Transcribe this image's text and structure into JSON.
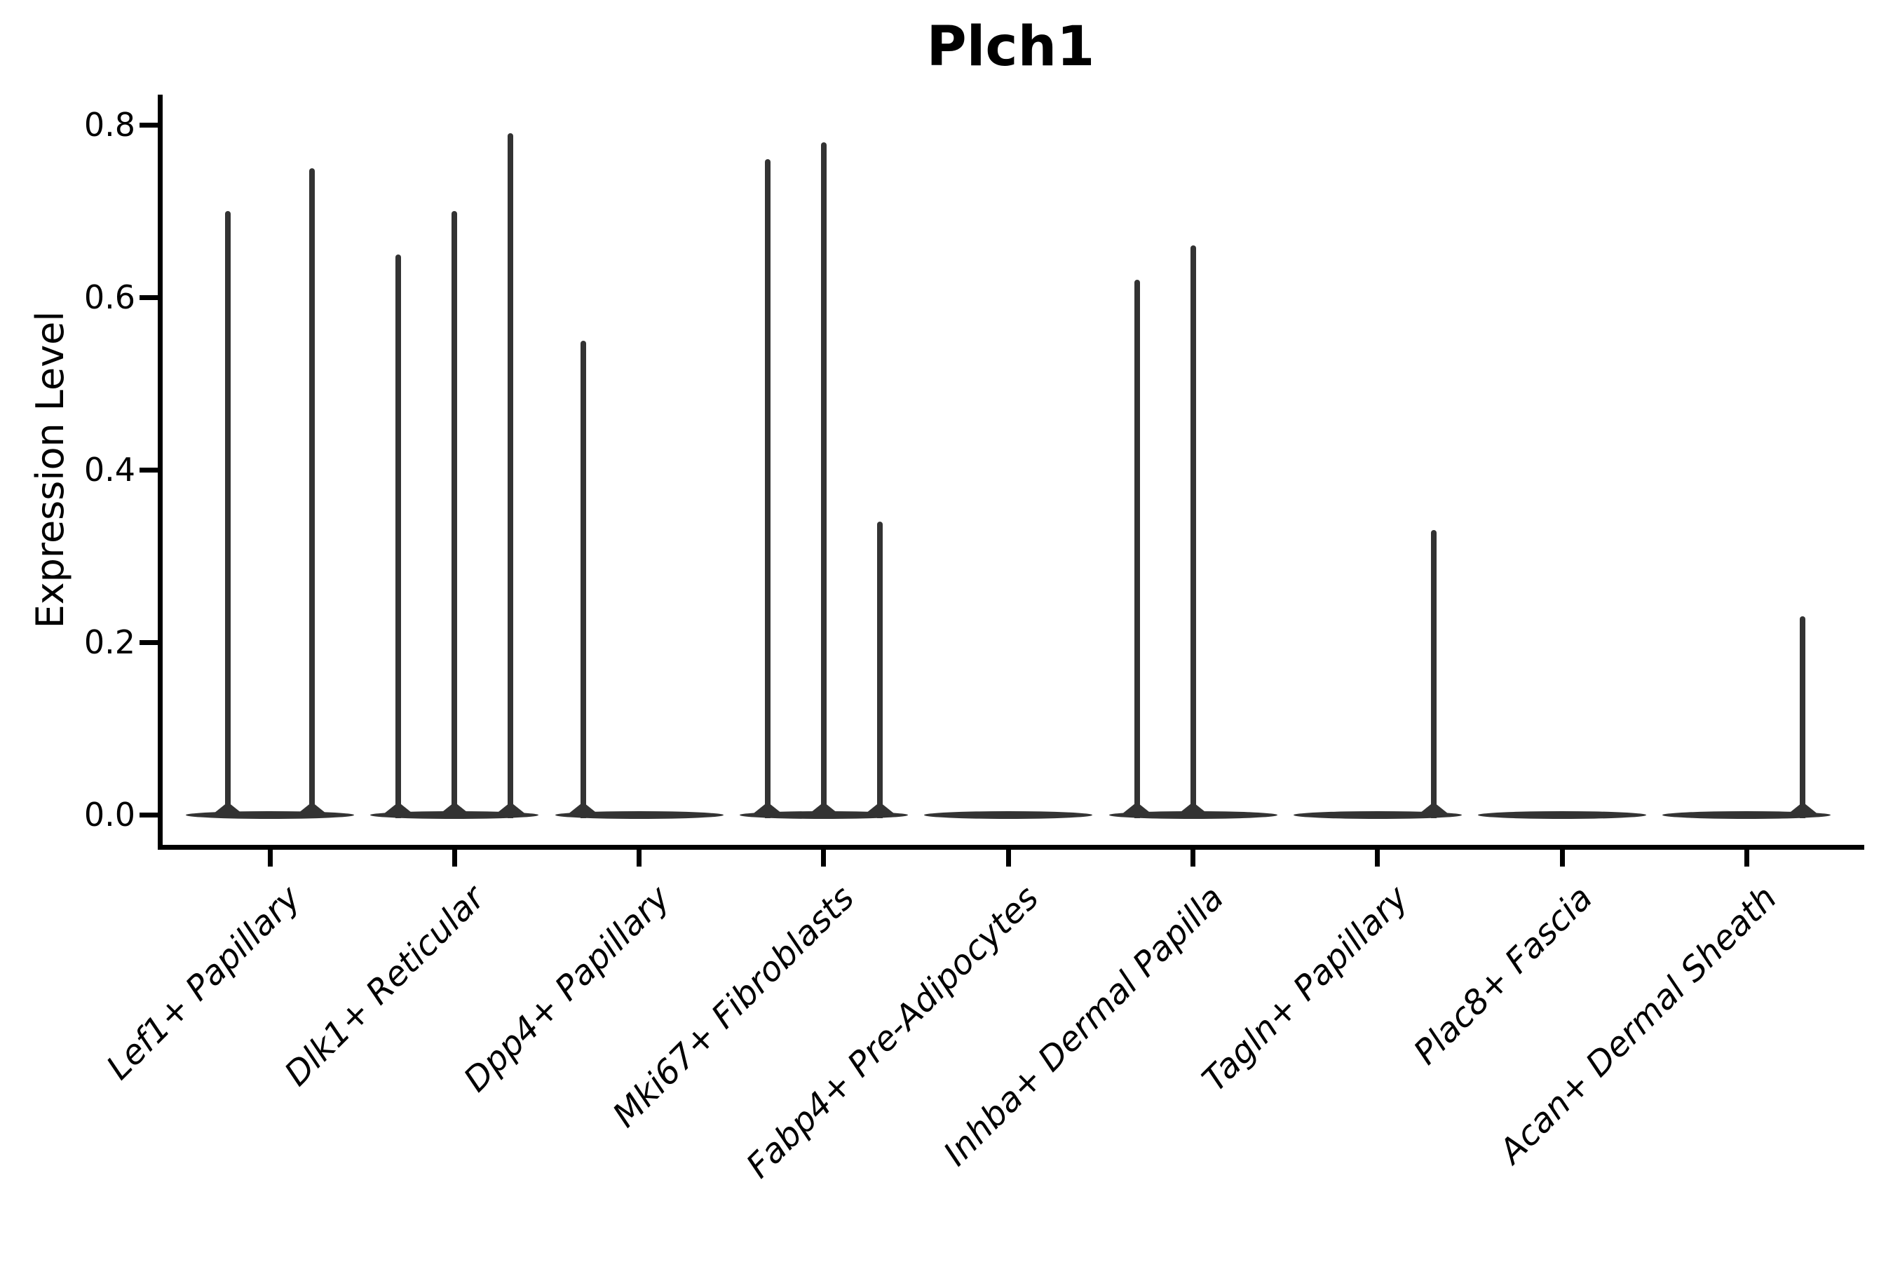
{
  "chart_data": {
    "type": "violin",
    "title": "Plch1",
    "ylabel": "Expression Level",
    "xlabel": "",
    "ylim": [
      0,
      0.8
    ],
    "yticks": [
      "0.0",
      "0.2",
      "0.4",
      "0.6",
      "0.8"
    ],
    "ytick_values": [
      0.0,
      0.2,
      0.4,
      0.6,
      0.8
    ],
    "grid": false,
    "legend": "none",
    "categories": [
      "Lef1+ Papillary",
      "Dlk1+ Reticular",
      "Dpp4+ Papillary",
      "Mki67+ Fibroblasts",
      "Fabp4+ Pre-Adipocytes",
      "Inhba+ Dermal Papilla",
      "Tagln+ Papillary",
      "Plac8+ Fascia",
      "Acan+ Dermal Sheath"
    ],
    "violins": [
      {
        "category": "Lef1+ Papillary",
        "splits": 2,
        "sub_violins": [
          {
            "slot": 0,
            "max": 0.7
          },
          {
            "slot": 1,
            "max": 0.75
          }
        ]
      },
      {
        "category": "Dlk1+ Reticular",
        "splits": 3,
        "sub_violins": [
          {
            "slot": 0,
            "max": 0.65
          },
          {
            "slot": 1,
            "max": 0.7
          },
          {
            "slot": 2,
            "max": 0.79
          }
        ]
      },
      {
        "category": "Dpp4+ Papillary",
        "splits": 3,
        "sub_violins": [
          {
            "slot": 0,
            "max": 0.55
          },
          {
            "slot": 1,
            "max": 0.0
          },
          {
            "slot": 2,
            "max": 0.0
          }
        ]
      },
      {
        "category": "Mki67+ Fibroblasts",
        "splits": 3,
        "sub_violins": [
          {
            "slot": 0,
            "max": 0.76
          },
          {
            "slot": 1,
            "max": 0.78
          },
          {
            "slot": 2,
            "max": 0.34
          }
        ]
      },
      {
        "category": "Fabp4+ Pre-Adipocytes",
        "splits": 3,
        "sub_violins": [
          {
            "slot": 0,
            "max": 0.0
          },
          {
            "slot": 1,
            "max": 0.0
          },
          {
            "slot": 2,
            "max": 0.0
          }
        ]
      },
      {
        "category": "Inhba+ Dermal Papilla",
        "splits": 3,
        "sub_violins": [
          {
            "slot": 0,
            "max": 0.62
          },
          {
            "slot": 1,
            "max": 0.66
          },
          {
            "slot": 2,
            "max": 0.0
          }
        ]
      },
      {
        "category": "Tagln+ Papillary",
        "splits": 3,
        "sub_violins": [
          {
            "slot": 0,
            "max": 0.0
          },
          {
            "slot": 1,
            "max": 0.0
          },
          {
            "slot": 2,
            "max": 0.33
          }
        ]
      },
      {
        "category": "Plac8+ Fascia",
        "splits": 3,
        "sub_violins": [
          {
            "slot": 0,
            "max": 0.0
          },
          {
            "slot": 1,
            "max": 0.0
          },
          {
            "slot": 2,
            "max": 0.0
          }
        ]
      },
      {
        "category": "Acan+ Dermal Sheath",
        "splits": 3,
        "sub_violins": [
          {
            "slot": 0,
            "max": 0.0
          },
          {
            "slot": 1,
            "max": 0.0
          },
          {
            "slot": 2,
            "max": 0.23
          }
        ]
      }
    ],
    "style": {
      "violin_color": "#333333",
      "axis_color": "#000000",
      "background": "#ffffff",
      "title_bold": true,
      "xtick_label_angle_deg": 45,
      "xtick_label_italic": true
    }
  }
}
